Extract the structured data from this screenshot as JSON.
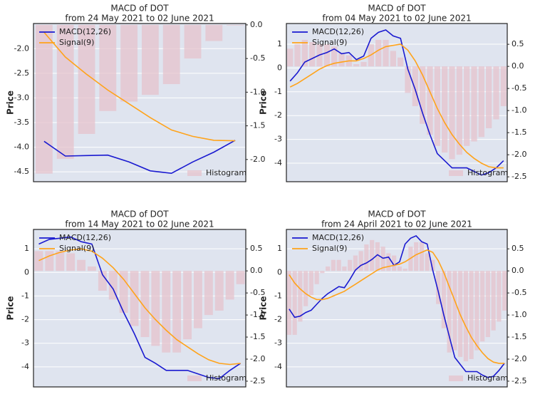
{
  "chart_data": [
    {
      "type": "macd",
      "title": "MACD of DOT",
      "subtitle": "from 24 May 2021 to 02 June 2021",
      "ylabel": "Price",
      "ylim": [
        -4.7,
        -1.49
      ],
      "yticks": [
        {
          "value": -2,
          "label": "-2.0"
        },
        -2.5,
        {
          "value": -3,
          "label": "-3.0"
        },
        -3.5,
        {
          "value": -4,
          "label": "-4.0"
        },
        -4.5
      ],
      "y2lim": [
        -2.33,
        0.02
      ],
      "y2ticks": [
        {
          "value": 0,
          "label": "0.0"
        },
        -0.5,
        {
          "value": -1,
          "label": "-1.0"
        },
        -1.5,
        {
          "value": -2,
          "label": "-2.0"
        }
      ],
      "grid": true,
      "legend": "upper left",
      "series": [
        {
          "name": "MACD(12,26)",
          "color": "#1a1ad0",
          "type": "line",
          "values": [
            -3.88,
            -4.18,
            -4.17,
            -4.16,
            -4.3,
            -4.48,
            -4.53,
            -4.3,
            -4.1,
            -3.86
          ]
        },
        {
          "name": "Signal(9)",
          "color": "#ffa31a",
          "type": "line",
          "values": [
            -1.67,
            -2.17,
            -2.52,
            -2.84,
            -3.12,
            -3.4,
            -3.65,
            -3.78,
            -3.86,
            -3.87
          ]
        },
        {
          "name": "Histogram",
          "color": "#e6c3cc",
          "type": "bar",
          "axis": "y2",
          "legend": "lower right",
          "values": [
            -2.21,
            -1.99,
            -1.62,
            -1.28,
            -1.14,
            -1.04,
            -0.88,
            -0.5,
            -0.24,
            -0.01
          ]
        }
      ]
    },
    {
      "type": "macd",
      "title": "MACD of DOT",
      "subtitle": "from 04 May 2021 to 02 June 2021",
      "ylabel": "Price",
      "ylim": [
        -4.78,
        1.87
      ],
      "yticks": [
        1,
        0,
        -1,
        -2,
        -3,
        -4
      ],
      "y2lim": [
        -2.61,
        0.97
      ],
      "y2ticks": [
        0.5,
        {
          "value": 0,
          "label": "0.0"
        },
        -0.5,
        {
          "value": -1,
          "label": "-1.0"
        },
        -1.5,
        {
          "value": -2,
          "label": "-2.0"
        },
        -2.5
      ],
      "grid": true,
      "legend": "upper left",
      "series": [
        {
          "name": "MACD(12,26)",
          "color": "#1a1ad0",
          "type": "line",
          "values": [
            -0.55,
            -0.2,
            0.25,
            0.4,
            0.55,
            0.65,
            0.8,
            0.6,
            0.65,
            0.35,
            0.5,
            1.25,
            1.5,
            1.6,
            1.35,
            1.25,
            -0.05,
            -0.9,
            -1.9,
            -2.8,
            -3.6,
            -3.9,
            -4.2,
            -4.2,
            -4.2,
            -4.35,
            -4.5,
            -4.4,
            -4.2,
            -3.9
          ]
        },
        {
          "name": "Signal(9)",
          "color": "#ffa31a",
          "type": "line",
          "values": [
            -0.8,
            -0.65,
            -0.45,
            -0.25,
            -0.05,
            0.1,
            0.2,
            0.25,
            0.3,
            0.3,
            0.4,
            0.55,
            0.75,
            0.9,
            0.95,
            1.0,
            0.75,
            0.3,
            -0.3,
            -1.0,
            -1.7,
            -2.3,
            -2.8,
            -3.2,
            -3.55,
            -3.8,
            -4.0,
            -4.15,
            -4.2,
            -4.2
          ]
        },
        {
          "name": "Histogram",
          "color": "#e6c3cc",
          "type": "bar",
          "axis": "y2",
          "legend": "lower right",
          "values": [
            0.4,
            0.5,
            0.6,
            0.55,
            0.5,
            0.5,
            0.45,
            0.3,
            0.25,
            0.05,
            0.1,
            0.5,
            0.6,
            0.6,
            0.35,
            0.2,
            -0.6,
            -0.9,
            -1.3,
            -1.55,
            -1.8,
            -1.95,
            -2.1,
            -2.0,
            -1.8,
            -1.7,
            -1.6,
            -1.4,
            -1.2,
            -0.9
          ]
        }
      ]
    },
    {
      "type": "macd",
      "title": "MACD of DOT",
      "subtitle": "from 14 May 2021 to 02 June 2021",
      "ylabel": "Price",
      "ylim": [
        -4.85,
        1.82
      ],
      "yticks": [
        1,
        0,
        -1,
        -2,
        -3,
        -4
      ],
      "y2lim": [
        -2.63,
        0.94
      ],
      "y2ticks": [
        0.5,
        {
          "value": 0,
          "label": "0.0"
        },
        -0.5,
        {
          "value": -1,
          "label": "-1.0"
        },
        -1.5,
        {
          "value": -2,
          "label": "-2.0"
        },
        -2.5
      ],
      "grid": true,
      "legend": "upper left",
      "series": [
        {
          "name": "MACD(12,26)",
          "color": "#1a1ad0",
          "type": "line",
          "values": [
            1.2,
            1.4,
            1.45,
            1.5,
            1.3,
            1.2,
            -0.1,
            -0.7,
            -1.7,
            -2.6,
            -3.6,
            -3.85,
            -4.15,
            -4.15,
            -4.15,
            -4.3,
            -4.45,
            -4.5,
            -4.15,
            -3.85
          ]
        },
        {
          "name": "Signal(9)",
          "color": "#ffa31a",
          "type": "line",
          "values": [
            0.5,
            0.7,
            0.85,
            0.95,
            1.0,
            0.9,
            0.6,
            0.2,
            -0.3,
            -0.9,
            -1.5,
            -2.0,
            -2.45,
            -2.85,
            -3.15,
            -3.45,
            -3.7,
            -3.85,
            -3.9,
            -3.85
          ]
        },
        {
          "name": "Histogram",
          "color": "#e6c3cc",
          "type": "bar",
          "axis": "y2",
          "legend": "lower right",
          "values": [
            0.45,
            0.45,
            0.45,
            0.4,
            0.25,
            0.1,
            -0.45,
            -0.65,
            -0.95,
            -1.25,
            -1.5,
            -1.7,
            -1.85,
            -1.85,
            -1.55,
            -1.3,
            -1.0,
            -0.9,
            -0.65,
            -0.3
          ]
        }
      ]
    },
    {
      "type": "macd",
      "title": "MACD of DOT",
      "subtitle": "from 24 April 2021 to 02 June 2021",
      "ylabel": "Price",
      "ylim": [
        -4.85,
        1.82
      ],
      "yticks": [
        1,
        0,
        -1,
        -2,
        -3,
        -4
      ],
      "y2lim": [
        -2.63,
        0.94
      ],
      "y2ticks": [
        0.5,
        {
          "value": 0,
          "label": "0.0"
        },
        -0.5,
        {
          "value": -1,
          "label": "-1.0"
        },
        -1.5,
        {
          "value": -2,
          "label": "-2.0"
        },
        -2.5
      ],
      "grid": true,
      "legend": "upper left",
      "series": [
        {
          "name": "MACD(12,26)",
          "color": "#1a1ad0",
          "type": "line",
          "values": [
            -1.55,
            -1.9,
            -1.85,
            -1.7,
            -1.6,
            -1.35,
            -1.1,
            -0.9,
            -0.75,
            -0.6,
            -0.65,
            -0.3,
            0.1,
            0.3,
            0.4,
            0.55,
            0.75,
            0.6,
            0.65,
            0.3,
            0.45,
            1.2,
            1.45,
            1.55,
            1.3,
            1.2,
            0.1,
            -0.8,
            -1.8,
            -2.7,
            -3.6,
            -3.9,
            -4.2,
            -4.2,
            -4.2,
            -4.35,
            -4.45,
            -4.4,
            -4.15,
            -3.85
          ]
        },
        {
          "name": "Signal(9)",
          "color": "#ffa31a",
          "type": "line",
          "values": [
            -0.1,
            -0.45,
            -0.7,
            -0.9,
            -1.05,
            -1.15,
            -1.15,
            -1.1,
            -1.0,
            -0.9,
            -0.8,
            -0.65,
            -0.5,
            -0.35,
            -0.2,
            -0.05,
            0.1,
            0.2,
            0.25,
            0.3,
            0.35,
            0.45,
            0.6,
            0.75,
            0.85,
            0.95,
            0.85,
            0.5,
            0.0,
            -0.6,
            -1.2,
            -1.8,
            -2.3,
            -2.75,
            -3.1,
            -3.4,
            -3.65,
            -3.8,
            -3.85,
            -3.85
          ]
        },
        {
          "name": "Histogram",
          "color": "#e6c3cc",
          "type": "bar",
          "axis": "y2",
          "legend": "lower right",
          "values": [
            -1.45,
            -1.45,
            -1.15,
            -0.8,
            -0.55,
            -0.3,
            -0.05,
            0.1,
            0.25,
            0.25,
            0.1,
            0.25,
            0.35,
            0.45,
            0.6,
            0.7,
            0.65,
            0.55,
            0.4,
            0.35,
            0.1,
            0.05,
            0.55,
            0.65,
            0.65,
            0.4,
            0.25,
            -0.75,
            -1.3,
            -1.85,
            -1.8,
            -1.95,
            -2.05,
            -2.0,
            -1.8,
            -1.6,
            -1.5,
            -1.35,
            -1.15,
            -0.9
          ]
        }
      ]
    }
  ]
}
